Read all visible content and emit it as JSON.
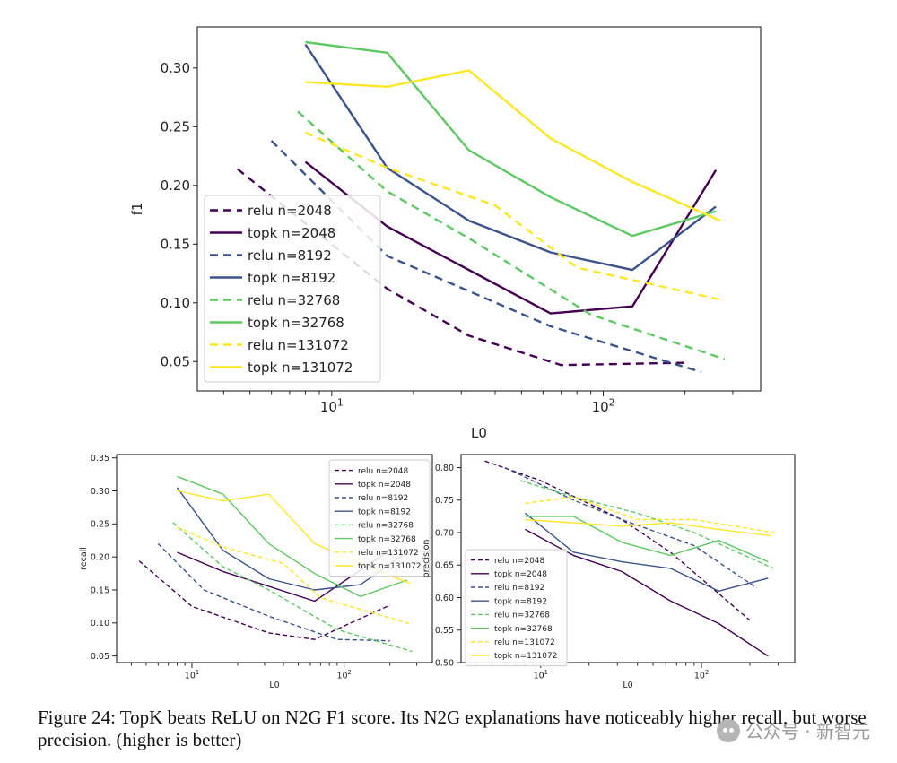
{
  "chart_data": [
    {
      "type": "line",
      "id": "f1",
      "title": "",
      "xlabel": "L0",
      "ylabel": "f1",
      "xscale": "log",
      "xlim": [
        3.2,
        380
      ],
      "ylim": [
        0.025,
        0.335
      ],
      "xticks": [
        {
          "value": 10,
          "label": "10^1"
        },
        {
          "value": 100,
          "label": "10^2"
        }
      ],
      "yticks": [
        0.05,
        0.1,
        0.15,
        0.2,
        0.25,
        0.3
      ],
      "ytick_labels": [
        "0.05",
        "0.10",
        "0.15",
        "0.20",
        "0.25",
        "0.30"
      ],
      "legend_position": "lower-left",
      "series": [
        {
          "name": "relu n=2048",
          "color": "#440154",
          "dashed": true,
          "x": [
            4.5,
            16,
            32,
            70,
            200
          ],
          "y": [
            0.214,
            0.112,
            0.072,
            0.047,
            0.049
          ]
        },
        {
          "name": "topk n=2048",
          "color": "#440154",
          "dashed": false,
          "x": [
            8,
            16,
            64,
            128,
            260
          ],
          "y": [
            0.22,
            0.165,
            0.091,
            0.097,
            0.213
          ]
        },
        {
          "name": "relu n=8192",
          "color": "#3b528b",
          "dashed": true,
          "x": [
            6,
            16,
            64,
            230
          ],
          "y": [
            0.238,
            0.14,
            0.08,
            0.041
          ]
        },
        {
          "name": "topk n=8192",
          "color": "#3b528b",
          "dashed": false,
          "x": [
            8,
            16,
            32,
            64,
            128,
            260
          ],
          "y": [
            0.32,
            0.215,
            0.17,
            0.143,
            0.128,
            0.182
          ]
        },
        {
          "name": "relu n=32768",
          "color": "#5ec962",
          "dashed": true,
          "x": [
            7.5,
            16,
            32,
            90,
            280
          ],
          "y": [
            0.263,
            0.195,
            0.155,
            0.09,
            0.052
          ]
        },
        {
          "name": "topk n=32768",
          "color": "#5ec962",
          "dashed": false,
          "x": [
            8,
            16,
            32,
            64,
            128,
            260
          ],
          "y": [
            0.322,
            0.313,
            0.23,
            0.19,
            0.157,
            0.178
          ]
        },
        {
          "name": "relu n=131072",
          "color": "#fde725",
          "dashed": true,
          "x": [
            8,
            16,
            40,
            80,
            280
          ],
          "y": [
            0.245,
            0.215,
            0.183,
            0.13,
            0.102
          ]
        },
        {
          "name": "topk n=131072",
          "color": "#fde725",
          "dashed": false,
          "x": [
            8,
            16,
            32,
            64,
            128,
            270
          ],
          "y": [
            0.288,
            0.284,
            0.298,
            0.24,
            0.203,
            0.17
          ]
        }
      ]
    },
    {
      "type": "line",
      "id": "recall",
      "title": "",
      "xlabel": "L0",
      "ylabel": "recall",
      "xscale": "log",
      "xlim": [
        3.2,
        380
      ],
      "ylim": [
        0.04,
        0.355
      ],
      "xticks": [
        {
          "value": 10,
          "label": "10^1"
        },
        {
          "value": 100,
          "label": "10^2"
        }
      ],
      "yticks": [
        0.05,
        0.1,
        0.15,
        0.2,
        0.25,
        0.3,
        0.35
      ],
      "ytick_labels": [
        "0.05",
        "0.10",
        "0.15",
        "0.20",
        "0.25",
        "0.30",
        "0.35"
      ],
      "legend_position": "top-right",
      "series": [
        {
          "name": "relu n=2048",
          "color": "#440154",
          "dashed": true,
          "x": [
            4.5,
            10,
            32,
            64,
            200
          ],
          "y": [
            0.194,
            0.125,
            0.085,
            0.075,
            0.127
          ]
        },
        {
          "name": "topk n=2048",
          "color": "#440154",
          "dashed": false,
          "x": [
            8,
            16,
            64,
            128,
            200
          ],
          "y": [
            0.207,
            0.178,
            0.133,
            0.18,
            0.21
          ]
        },
        {
          "name": "relu n=8192",
          "color": "#3b528b",
          "dashed": true,
          "x": [
            6,
            12,
            32,
            90,
            200
          ],
          "y": [
            0.22,
            0.15,
            0.11,
            0.075,
            0.073
          ]
        },
        {
          "name": "topk n=8192",
          "color": "#3b528b",
          "dashed": false,
          "x": [
            8,
            16,
            32,
            64,
            128,
            260
          ],
          "y": [
            0.305,
            0.21,
            0.167,
            0.15,
            0.158,
            0.207
          ]
        },
        {
          "name": "relu n=32768",
          "color": "#5ec962",
          "dashed": true,
          "x": [
            7.5,
            16,
            32,
            90,
            280
          ],
          "y": [
            0.252,
            0.185,
            0.15,
            0.09,
            0.057
          ]
        },
        {
          "name": "topk n=32768",
          "color": "#5ec962",
          "dashed": false,
          "x": [
            8,
            16,
            32,
            64,
            128,
            260
          ],
          "y": [
            0.322,
            0.295,
            0.22,
            0.175,
            0.14,
            0.165
          ]
        },
        {
          "name": "relu n=131072",
          "color": "#fde725",
          "dashed": true,
          "x": [
            8,
            16,
            40,
            70,
            280
          ],
          "y": [
            0.245,
            0.215,
            0.19,
            0.138,
            0.098
          ]
        },
        {
          "name": "topk n=131072",
          "color": "#fde725",
          "dashed": false,
          "x": [
            8,
            16,
            32,
            64,
            128,
            270
          ],
          "y": [
            0.3,
            0.285,
            0.295,
            0.22,
            0.19,
            0.16
          ]
        }
      ]
    },
    {
      "type": "line",
      "id": "precision",
      "title": "",
      "xlabel": "L0",
      "ylabel": "precision",
      "xscale": "log",
      "xlim": [
        3.2,
        380
      ],
      "ylim": [
        0.5,
        0.82
      ],
      "xticks": [
        {
          "value": 10,
          "label": "10^1"
        },
        {
          "value": 100,
          "label": "10^2"
        }
      ],
      "yticks": [
        0.5,
        0.55,
        0.6,
        0.65,
        0.7,
        0.75,
        0.8
      ],
      "ytick_labels": [
        "0.50",
        "0.55",
        "0.60",
        "0.65",
        "0.70",
        "0.75",
        "0.80"
      ],
      "legend_position": "lower-left",
      "series": [
        {
          "name": "relu n=2048",
          "color": "#440154",
          "dashed": true,
          "x": [
            4.5,
            10,
            32,
            64,
            200
          ],
          "y": [
            0.81,
            0.78,
            0.72,
            0.67,
            0.565
          ]
        },
        {
          "name": "topk n=2048",
          "color": "#440154",
          "dashed": false,
          "x": [
            8,
            16,
            32,
            64,
            128,
            260
          ],
          "y": [
            0.705,
            0.665,
            0.64,
            0.595,
            0.56,
            0.51
          ]
        },
        {
          "name": "relu n=8192",
          "color": "#3b528b",
          "dashed": true,
          "x": [
            6,
            16,
            32,
            90,
            220
          ],
          "y": [
            0.8,
            0.75,
            0.72,
            0.68,
            0.615
          ]
        },
        {
          "name": "topk n=8192",
          "color": "#3b528b",
          "dashed": false,
          "x": [
            8,
            16,
            32,
            64,
            128,
            260
          ],
          "y": [
            0.73,
            0.67,
            0.655,
            0.645,
            0.61,
            0.63
          ]
        },
        {
          "name": "relu n=32768",
          "color": "#5ec962",
          "dashed": true,
          "x": [
            7.5,
            16,
            40,
            90,
            280
          ],
          "y": [
            0.78,
            0.755,
            0.73,
            0.7,
            0.645
          ]
        },
        {
          "name": "topk n=32768",
          "color": "#5ec962",
          "dashed": false,
          "x": [
            8,
            16,
            32,
            64,
            128,
            260
          ],
          "y": [
            0.725,
            0.725,
            0.685,
            0.665,
            0.688,
            0.655
          ]
        },
        {
          "name": "relu n=131072",
          "color": "#fde725",
          "dashed": true,
          "x": [
            8,
            16,
            40,
            90,
            280
          ],
          "y": [
            0.745,
            0.755,
            0.72,
            0.72,
            0.7
          ]
        },
        {
          "name": "topk n=131072",
          "color": "#fde725",
          "dashed": false,
          "x": [
            8,
            16,
            32,
            64,
            128,
            270
          ],
          "y": [
            0.72,
            0.715,
            0.71,
            0.715,
            0.705,
            0.695
          ]
        }
      ]
    }
  ],
  "caption": {
    "text": "Figure 24: TopK beats ReLU on N2G F1 score. Its N2G explanations have noticeably higher recall, but worse precision. (higher is better)"
  },
  "watermark": {
    "text": "公众号 · 新智元"
  }
}
